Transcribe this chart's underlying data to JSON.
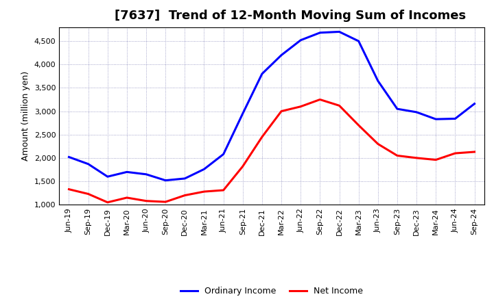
{
  "title": "[7637]  Trend of 12-Month Moving Sum of Incomes",
  "ylabel": "Amount (million yen)",
  "xlabels": [
    "Jun-19",
    "Sep-19",
    "Dec-19",
    "Mar-20",
    "Jun-20",
    "Sep-20",
    "Dec-20",
    "Mar-21",
    "Jun-21",
    "Sep-21",
    "Dec-21",
    "Mar-22",
    "Jun-22",
    "Sep-22",
    "Dec-22",
    "Mar-23",
    "Jun-23",
    "Sep-23",
    "Dec-23",
    "Mar-24",
    "Jun-24",
    "Sep-24"
  ],
  "ordinary_income": [
    2020,
    1870,
    1600,
    1700,
    1650,
    1520,
    1560,
    1760,
    2080,
    2950,
    3800,
    4200,
    4520,
    4680,
    4700,
    4500,
    3650,
    3050,
    2980,
    2830,
    2840,
    3160
  ],
  "net_income": [
    1330,
    1230,
    1050,
    1150,
    1080,
    1060,
    1200,
    1280,
    1310,
    1820,
    2450,
    3000,
    3100,
    3250,
    3120,
    2700,
    2300,
    2050,
    2000,
    1960,
    2100,
    2130
  ],
  "ordinary_color": "#0000FF",
  "net_color": "#FF0000",
  "ylim": [
    1000,
    4800
  ],
  "yticks": [
    1000,
    1500,
    2000,
    2500,
    3000,
    3500,
    4000,
    4500
  ],
  "background_color": "#FFFFFF",
  "grid_color": "#AAAACC",
  "legend_ordinary": "Ordinary Income",
  "legend_net": "Net Income",
  "title_fontsize": 13,
  "axis_label_fontsize": 9,
  "tick_fontsize": 8,
  "legend_fontsize": 9,
  "line_width": 2.2
}
